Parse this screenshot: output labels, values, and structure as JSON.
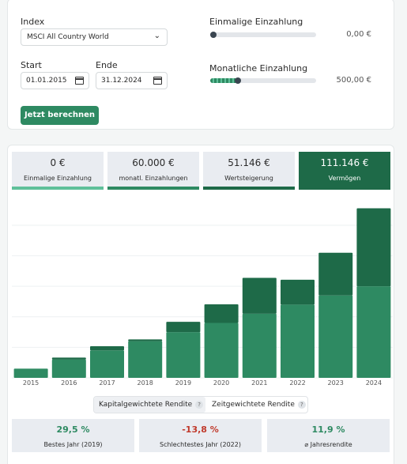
{
  "form": {
    "index_label": "Index",
    "index_value": "MSCI All Country World",
    "start_label": "Start",
    "start_value": "01.01.2015",
    "end_label": "Ende",
    "end_value": "31.12.2024",
    "button_label": "Jetzt berechnen",
    "one_time_label": "Einmalige Einzahlung",
    "one_time_value": "0,00 €",
    "one_time_level": 0,
    "monthly_label": "Monatliche Einzahlung",
    "monthly_value": "500,00 €",
    "monthly_level": 0.26
  },
  "stats": [
    {
      "amount": "0 €",
      "caption": "Einmalige Einzahlung"
    },
    {
      "amount": "60.000 €",
      "caption": "monatl. Einzahlungen"
    },
    {
      "amount": "51.146 €",
      "caption": "Wertsteigerung"
    },
    {
      "amount": "111.146 €",
      "caption": "Vermögen"
    }
  ],
  "colors": {
    "deposit": "#2e8a62",
    "growth": "#1e6a48",
    "light_panel": "#e9ecf1",
    "positive": "#2e8a62",
    "negative": "#c0392b"
  },
  "chart_data": {
    "type": "bar",
    "stacked": true,
    "categories": [
      "2015",
      "2016",
      "2017",
      "2018",
      "2019",
      "2020",
      "2021",
      "2022",
      "2023",
      "2024"
    ],
    "series": [
      {
        "values": [
          6000,
          12000,
          18000,
          24000,
          30000,
          36000,
          42000,
          48000,
          54000,
          60000
        ]
      },
      {
        "values": [
          0,
          1300,
          2700,
          1200,
          6700,
          12200,
          23500,
          16300,
          28000,
          51146
        ]
      }
    ],
    "ylim": [
      0,
      115000
    ],
    "grid": true
  },
  "toggle": {
    "option_1": "Kapitalgewichtete Rendite",
    "option_2": "Zeitgewichtete Rendite",
    "help": "?"
  },
  "performance": [
    {
      "value": "29,5 %",
      "caption": "Bestes Jahr (2019)",
      "tone": "positive"
    },
    {
      "value": "-13,8 %",
      "caption": "Schlechtestes Jahr (2022)",
      "tone": "negative"
    },
    {
      "value": "11,9 %",
      "caption": "⌀ Jahresrendite",
      "tone": "positive"
    }
  ]
}
